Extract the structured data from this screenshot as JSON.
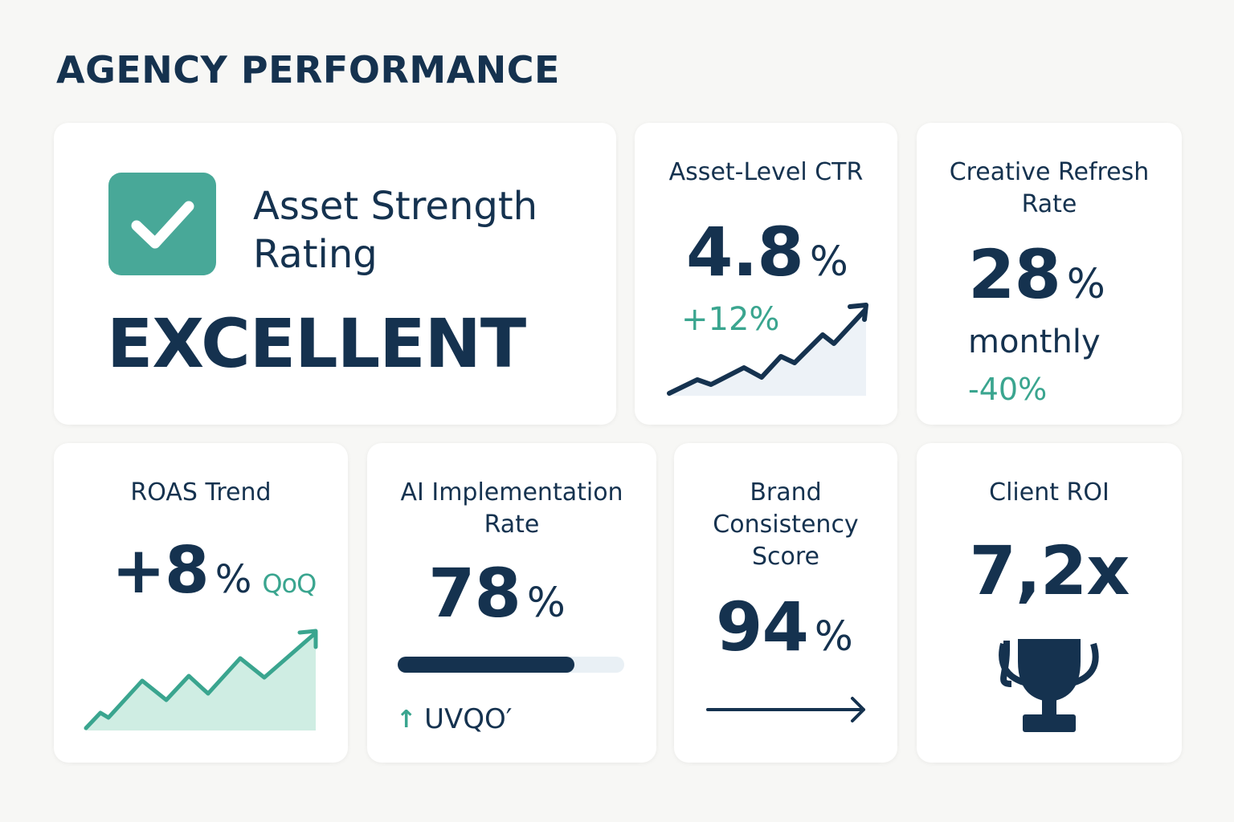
{
  "page": {
    "title": "AGENCY PERFORMANCE"
  },
  "colors": {
    "navy": "#15324f",
    "teal": "#3aa58f",
    "background": "#f7f7f5"
  },
  "asset_strength": {
    "title_line1": "Asset Strength",
    "title_line2": "Rating",
    "value": "EXCELLENT",
    "icon": "check-icon"
  },
  "ctr": {
    "title": "Asset-Level CTR",
    "value": "4.8",
    "unit": "%",
    "change": "+12%"
  },
  "refresh": {
    "title_line1": "Creative Refresh",
    "title_line2": "Rate",
    "value": "28",
    "unit": "%",
    "period": "monthly",
    "change": "-40%"
  },
  "roas": {
    "title": "ROAS Trend",
    "value": "+8",
    "unit": "%",
    "period": "QoQ"
  },
  "ai": {
    "title_line1": "AI Implementation",
    "title_line2": "Rate",
    "value": "78",
    "unit": "%",
    "progress_percent": 78,
    "footer": "UVQO′"
  },
  "brand": {
    "title_line1": "Brand",
    "title_line2": "Consistency",
    "title_line3": "Score",
    "value": "94",
    "unit": "%"
  },
  "roi": {
    "title": "Client ROI",
    "value": "7,2x",
    "icon": "trophy-icon"
  }
}
